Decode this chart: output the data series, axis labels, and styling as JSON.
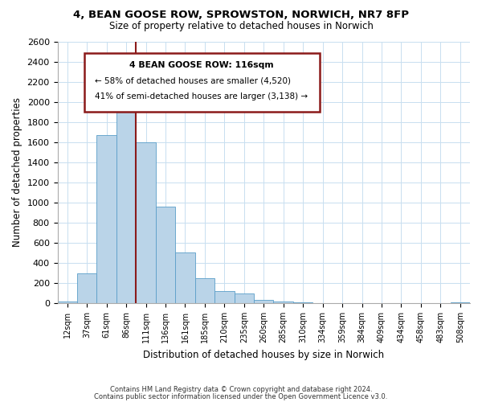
{
  "title": "4, BEAN GOOSE ROW, SPROWSTON, NORWICH, NR7 8FP",
  "subtitle": "Size of property relative to detached houses in Norwich",
  "xlabel": "Distribution of detached houses by size in Norwich",
  "ylabel": "Number of detached properties",
  "bar_labels": [
    "12sqm",
    "37sqm",
    "61sqm",
    "86sqm",
    "111sqm",
    "136sqm",
    "161sqm",
    "185sqm",
    "210sqm",
    "235sqm",
    "260sqm",
    "285sqm",
    "310sqm",
    "334sqm",
    "359sqm",
    "384sqm",
    "409sqm",
    "434sqm",
    "458sqm",
    "483sqm",
    "508sqm"
  ],
  "bar_values": [
    20,
    295,
    1670,
    2130,
    1600,
    960,
    500,
    250,
    120,
    95,
    35,
    18,
    5,
    3,
    2,
    2,
    1,
    1,
    1,
    1,
    10
  ],
  "bar_color_normal": "#bad4e8",
  "vline_x": 3.5,
  "ylim": [
    0,
    2600
  ],
  "yticks": [
    0,
    200,
    400,
    600,
    800,
    1000,
    1200,
    1400,
    1600,
    1800,
    2000,
    2200,
    2400,
    2600
  ],
  "annotation_title": "4 BEAN GOOSE ROW: 116sqm",
  "annotation_line1": "← 58% of detached houses are smaller (4,520)",
  "annotation_line2": "41% of semi-detached houses are larger (3,138) →",
  "annotation_box_color": "#ffffff",
  "annotation_border_color": "#8b1a1a",
  "footer_line1": "Contains HM Land Registry data © Crown copyright and database right 2024.",
  "footer_line2": "Contains public sector information licensed under the Open Government Licence v3.0.",
  "background_color": "#ffffff",
  "grid_color": "#c8dff0"
}
